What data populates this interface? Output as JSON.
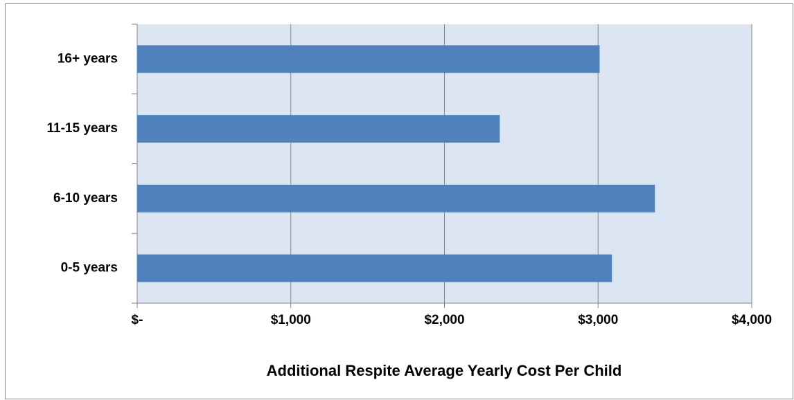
{
  "chart_data": {
    "type": "bar",
    "orientation": "horizontal",
    "categories": [
      "0-5 years",
      "6-10 years",
      "11-15 years",
      "16+ years"
    ],
    "values": [
      3090,
      3370,
      2360,
      3010
    ],
    "color": "#4f81bd",
    "x_label": "Additional Respite Average Yearly Cost Per Child",
    "xlim": [
      0,
      4000
    ],
    "xticks": [
      {
        "value": 0,
        "label": "$-"
      },
      {
        "value": 1000,
        "label": "$1,000"
      },
      {
        "value": 2000,
        "label": "$2,000"
      },
      {
        "value": 3000,
        "label": "$3,000"
      },
      {
        "value": 4000,
        "label": "$4,000"
      }
    ],
    "grid": true
  }
}
